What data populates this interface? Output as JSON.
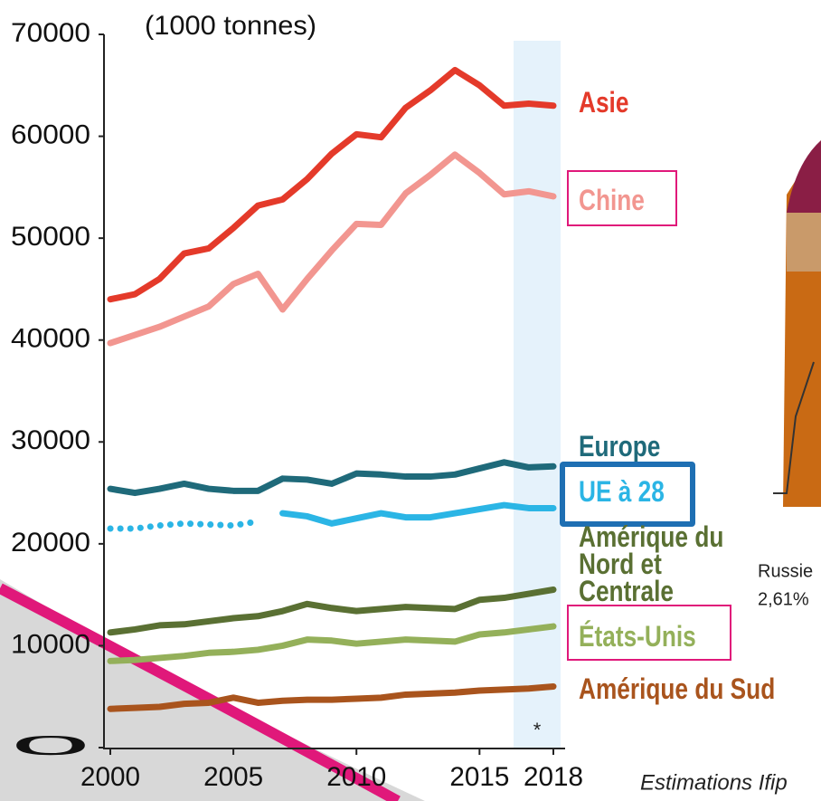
{
  "chart_data": {
    "type": "line",
    "subtitle": "(1000 tonnes)",
    "note": "Estimations Ifip",
    "estimate_marker": "*",
    "annotations": [
      "Russie",
      "2,61%"
    ],
    "x": [
      2000,
      2001,
      2002,
      2003,
      2004,
      2005,
      2006,
      2007,
      2008,
      2009,
      2010,
      2011,
      2012,
      2013,
      2014,
      2015,
      2016,
      2017,
      2018
    ],
    "xlim": [
      2000,
      2018
    ],
    "xticks": [
      2000,
      2005,
      2010,
      2015,
      2018
    ],
    "ylim": [
      0,
      70000
    ],
    "yticks": [
      0,
      10000,
      20000,
      30000,
      40000,
      50000,
      60000,
      70000
    ],
    "series": [
      {
        "name": "Asie",
        "color": "#e43a2a",
        "values": [
          44000,
          44500,
          46000,
          48500,
          49000,
          51000,
          53200,
          53800,
          55800,
          58300,
          60200,
          59900,
          62800,
          64500,
          66500,
          65000,
          63000,
          63200,
          63000
        ]
      },
      {
        "name": "Chine",
        "color": "#f29690",
        "values": [
          39700,
          40500,
          41300,
          42300,
          43300,
          45500,
          46500,
          43000,
          46000,
          48800,
          51400,
          51300,
          54400,
          56200,
          58200,
          56400,
          54300,
          54600,
          54100
        ]
      },
      {
        "name": "Europe",
        "color": "#1f6a7a",
        "values": [
          25400,
          25000,
          25400,
          25900,
          25400,
          25200,
          25200,
          26400,
          26300,
          25900,
          26900,
          26800,
          26600,
          26600,
          26800,
          27400,
          28000,
          27500,
          27600
        ]
      },
      {
        "name": "UE à 28",
        "color": "#2bb5e5",
        "dotted_until": 2006,
        "values": [
          21500,
          21500,
          21800,
          22000,
          21900,
          21800,
          22200,
          23000,
          22700,
          22000,
          22500,
          23000,
          22600,
          22600,
          23000,
          23400,
          23800,
          23500,
          23500
        ]
      },
      {
        "name": "Amérique du Nord et Centrale",
        "color": "#5a7033",
        "values": [
          11300,
          11600,
          12000,
          12100,
          12400,
          12700,
          12900,
          13400,
          14100,
          13700,
          13400,
          13600,
          13800,
          13700,
          13600,
          14500,
          14700,
          15100,
          15500
        ]
      },
      {
        "name": "États-Unis",
        "color": "#94b05a",
        "values": [
          8500,
          8600,
          8800,
          9000,
          9300,
          9400,
          9600,
          10000,
          10600,
          10500,
          10200,
          10400,
          10600,
          10500,
          10400,
          11100,
          11300,
          11600,
          11900
        ]
      },
      {
        "name": "Amérique du Sud",
        "color": "#a9541d",
        "values": [
          3800,
          3900,
          4000,
          4300,
          4400,
          4900,
          4400,
          4600,
          4700,
          4700,
          4800,
          4900,
          5200,
          5300,
          5400,
          5600,
          5700,
          5800,
          6000
        ]
      }
    ]
  }
}
